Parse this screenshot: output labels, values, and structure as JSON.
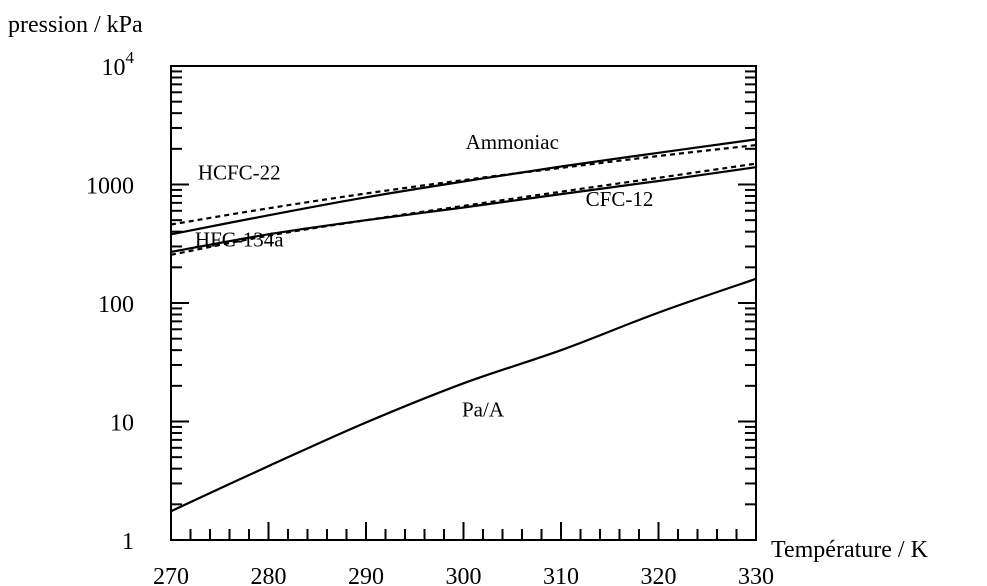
{
  "chart_data": {
    "type": "line",
    "title": "",
    "xlabel": "Température / K",
    "ylabel": "pression / kPa",
    "xlim": [
      270,
      330
    ],
    "ylim": [
      1,
      10000
    ],
    "yscale": "log",
    "grid": false,
    "legend": "none",
    "x_ticks": [
      "270",
      "280",
      "290",
      "300",
      "310",
      "320",
      "330"
    ],
    "y_ticks": [
      {
        "value": 1,
        "label": "1"
      },
      {
        "value": 10,
        "label": "10"
      },
      {
        "value": 100,
        "label": "100"
      },
      {
        "value": 1000,
        "label": "1000"
      },
      {
        "value": 10000,
        "label": "10",
        "exp": "4"
      }
    ],
    "series": [
      {
        "name": "Ammoniac",
        "style": "solid",
        "x": [
          270,
          280,
          290,
          300,
          310,
          320,
          330
        ],
        "y": [
          380,
          550,
          780,
          1060,
          1420,
          1850,
          2400
        ]
      },
      {
        "name": "HCFC-22",
        "style": "dashed",
        "x": [
          270,
          280,
          290,
          300,
          310,
          320,
          330
        ],
        "y": [
          460,
          630,
          840,
          1090,
          1380,
          1740,
          2150
        ]
      },
      {
        "name": "CFC-12",
        "style": "dashed",
        "x": [
          270,
          280,
          290,
          300,
          310,
          320,
          330
        ],
        "y": [
          255,
          370,
          500,
          660,
          870,
          1140,
          1500
        ]
      },
      {
        "name": "HFC-134a",
        "style": "solid",
        "x": [
          270,
          280,
          290,
          300,
          310,
          320,
          330
        ],
        "y": [
          270,
          380,
          500,
          640,
          830,
          1070,
          1400
        ]
      },
      {
        "name": "Pa/A",
        "style": "solid",
        "x": [
          270,
          280,
          290,
          300,
          310,
          320,
          330
        ],
        "y": [
          1.75,
          4.2,
          9.8,
          21,
          40,
          83,
          160
        ]
      }
    ],
    "annotations": [
      {
        "text": "Ammoniac",
        "x": 305,
        "y": 2000
      },
      {
        "text": "HCFC-22",
        "x": 277,
        "y": 1100
      },
      {
        "text": "CFC-12",
        "x": 316,
        "y": 660
      },
      {
        "text": "HFC-134a",
        "x": 277,
        "y": 300
      },
      {
        "text": "Pa/A",
        "x": 302,
        "y": 11
      }
    ]
  }
}
